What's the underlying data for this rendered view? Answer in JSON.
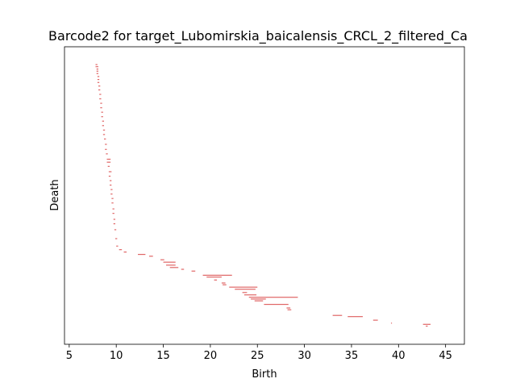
{
  "chart_data": {
    "type": "bar",
    "title": "Barcode2 for target_Lubomirskia_baicalensis_CRCL_2_filtered_Ca",
    "xlabel": "Birth",
    "ylabel": "Death",
    "xlim": [
      4.5,
      47.0
    ],
    "xticks": [
      5,
      10,
      15,
      20,
      25,
      30,
      35,
      40,
      45
    ],
    "ylim": [
      0,
      1
    ],
    "yticks": [],
    "bar_color": "#e06666",
    "series": [
      {
        "values": [
          [
            7.8,
            8.0,
            0.94
          ],
          [
            7.8,
            8.1,
            0.933
          ],
          [
            7.9,
            8.1,
            0.925
          ],
          [
            7.9,
            8.1,
            0.918
          ],
          [
            7.9,
            8.1,
            0.91
          ],
          [
            8.0,
            8.2,
            0.9
          ],
          [
            8.0,
            8.2,
            0.89
          ],
          [
            8.0,
            8.2,
            0.88
          ],
          [
            8.1,
            8.3,
            0.868
          ],
          [
            8.1,
            8.3,
            0.855
          ],
          [
            8.2,
            8.4,
            0.84
          ],
          [
            8.2,
            8.4,
            0.825
          ],
          [
            8.3,
            8.5,
            0.81
          ],
          [
            8.3,
            8.5,
            0.795
          ],
          [
            8.4,
            8.6,
            0.78
          ],
          [
            8.4,
            8.6,
            0.765
          ],
          [
            8.5,
            8.7,
            0.75
          ],
          [
            8.5,
            8.7,
            0.735
          ],
          [
            8.6,
            8.8,
            0.72
          ],
          [
            8.6,
            8.8,
            0.705
          ],
          [
            8.7,
            8.9,
            0.69
          ],
          [
            8.8,
            9.0,
            0.672
          ],
          [
            8.8,
            9.0,
            0.655
          ],
          [
            8.9,
            9.1,
            0.64
          ],
          [
            9.0,
            9.4,
            0.622
          ],
          [
            9.0,
            9.4,
            0.612
          ],
          [
            9.1,
            9.3,
            0.598
          ],
          [
            9.2,
            9.5,
            0.58
          ],
          [
            9.2,
            9.4,
            0.565
          ],
          [
            9.3,
            9.5,
            0.55
          ],
          [
            9.3,
            9.5,
            0.535
          ],
          [
            9.4,
            9.6,
            0.52
          ],
          [
            9.4,
            9.6,
            0.505
          ],
          [
            9.5,
            9.7,
            0.49
          ],
          [
            9.5,
            9.7,
            0.475
          ],
          [
            9.6,
            9.8,
            0.455
          ],
          [
            9.6,
            9.8,
            0.44
          ],
          [
            9.7,
            9.9,
            0.42
          ],
          [
            9.7,
            9.9,
            0.405
          ],
          [
            9.8,
            10.0,
            0.385
          ],
          [
            9.9,
            10.1,
            0.355
          ],
          [
            10.0,
            10.2,
            0.33
          ],
          [
            10.3,
            10.6,
            0.318
          ],
          [
            10.8,
            11.1,
            0.31
          ],
          [
            12.3,
            13.1,
            0.302
          ],
          [
            13.5,
            13.9,
            0.296
          ],
          [
            14.7,
            15.1,
            0.284
          ],
          [
            15.0,
            16.3,
            0.276
          ],
          [
            15.3,
            16.3,
            0.266
          ],
          [
            15.7,
            16.6,
            0.258
          ],
          [
            16.9,
            17.2,
            0.252
          ],
          [
            18.0,
            18.4,
            0.246
          ],
          [
            19.2,
            22.3,
            0.232
          ],
          [
            19.6,
            21.2,
            0.226
          ],
          [
            20.4,
            20.7,
            0.216
          ],
          [
            21.2,
            21.6,
            0.206
          ],
          [
            21.3,
            21.7,
            0.2
          ],
          [
            22.0,
            25.0,
            0.192
          ],
          [
            22.6,
            24.8,
            0.185
          ],
          [
            23.4,
            23.9,
            0.174
          ],
          [
            23.6,
            24.9,
            0.166
          ],
          [
            24.1,
            29.3,
            0.158
          ],
          [
            24.3,
            25.9,
            0.152
          ],
          [
            24.7,
            25.6,
            0.146
          ],
          [
            25.7,
            28.3,
            0.134
          ],
          [
            28.1,
            28.5,
            0.122
          ],
          [
            28.2,
            28.6,
            0.116
          ],
          [
            33.0,
            34.0,
            0.097
          ],
          [
            34.6,
            36.2,
            0.093
          ],
          [
            37.3,
            37.8,
            0.081
          ],
          [
            39.2,
            39.3,
            0.071
          ],
          [
            42.6,
            43.4,
            0.067
          ],
          [
            42.9,
            43.1,
            0.061
          ]
        ]
      }
    ]
  }
}
